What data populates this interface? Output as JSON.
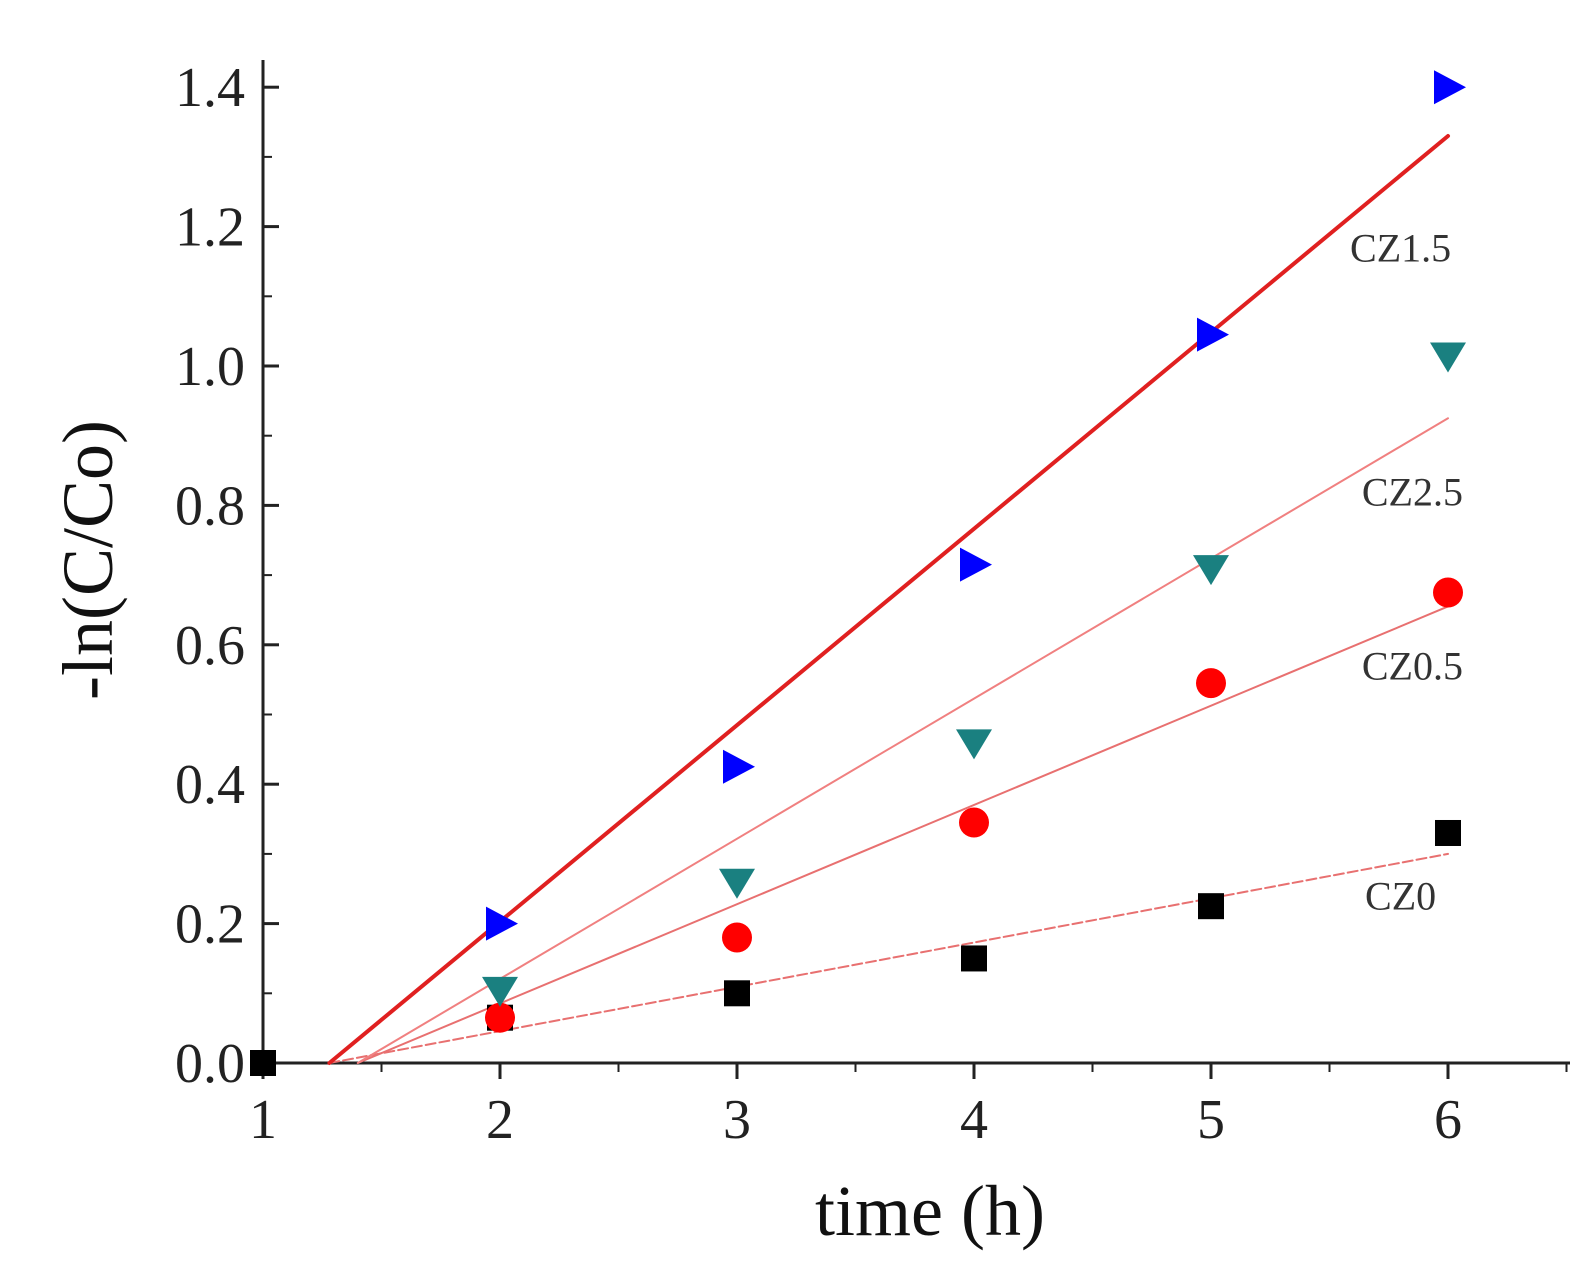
{
  "chart_data": {
    "type": "scatter",
    "title": "",
    "xlabel": "time (h)",
    "ylabel": "-ln(C/Co)",
    "xlim": [
      1,
      6.5
    ],
    "ylim": [
      0,
      1.4
    ],
    "xticks": [
      "1",
      "2",
      "3",
      "4",
      "5",
      "6"
    ],
    "yticks": [
      "0.0",
      "0.2",
      "0.4",
      "0.6",
      "0.8",
      "1.0",
      "1.2",
      "1.4"
    ],
    "grid": false,
    "series": [
      {
        "name": "CZ0",
        "marker": "square",
        "color": "#000000",
        "x": [
          1,
          2,
          3,
          4,
          5,
          6
        ],
        "y": [
          0.0,
          0.065,
          0.1,
          0.15,
          0.225,
          0.33
        ],
        "fit": {
          "x": [
            1.28,
            6.0
          ],
          "y": [
            0.0,
            0.3
          ],
          "color": "#e87070",
          "style": "dashed",
          "width": 2
        }
      },
      {
        "name": "CZ0.5",
        "marker": "circle",
        "color": "#ff0000",
        "x": [
          2,
          3,
          4,
          5,
          6
        ],
        "y": [
          0.065,
          0.18,
          0.345,
          0.545,
          0.675
        ],
        "fit": {
          "x": [
            1.4,
            6.0
          ],
          "y": [
            0.0,
            0.655
          ],
          "color": "#e87070",
          "style": "solid",
          "width": 2
        }
      },
      {
        "name": "CZ1.5",
        "marker": "triangle-right",
        "color": "#0000ff",
        "x": [
          2,
          3,
          4,
          5,
          6
        ],
        "y": [
          0.2,
          0.425,
          0.715,
          1.045,
          1.4
        ],
        "fit": {
          "x": [
            1.28,
            6.0
          ],
          "y": [
            0.0,
            1.33
          ],
          "color": "#e02020",
          "style": "solid",
          "width": 4
        }
      },
      {
        "name": "CZ2.5",
        "marker": "triangle-down",
        "color": "#1a8080",
        "x": [
          2,
          3,
          4,
          5,
          6
        ],
        "y": [
          0.105,
          0.26,
          0.46,
          0.71,
          1.015
        ],
        "fit": {
          "x": [
            1.4,
            6.0
          ],
          "y": [
            0.0,
            0.925
          ],
          "color": "#f08080",
          "style": "solid",
          "width": 2
        }
      }
    ],
    "annotations": [
      {
        "text": "CZ1.5",
        "x": 5.8,
        "y": 1.15
      },
      {
        "text": "CZ2.5",
        "x": 5.85,
        "y": 0.8
      },
      {
        "text": "CZ0.5",
        "x": 5.85,
        "y": 0.55
      },
      {
        "text": "CZ0",
        "x": 5.8,
        "y": 0.22
      }
    ]
  }
}
